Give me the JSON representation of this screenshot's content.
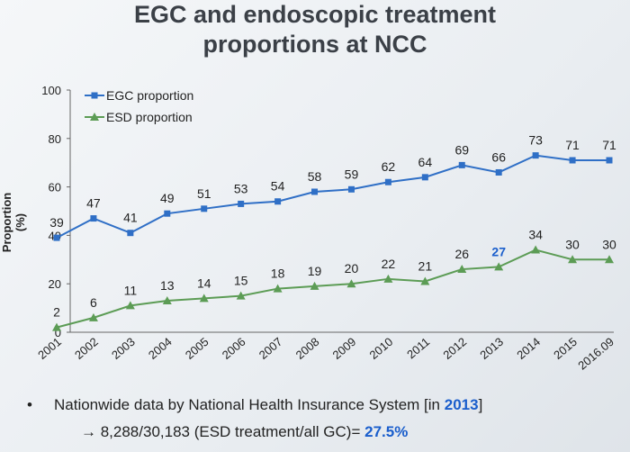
{
  "chart_data": {
    "type": "line",
    "title_line1": "EGC and endoscopic treatment",
    "title_line2": "proportions at NCC",
    "ylabel": "Proportion (%)",
    "xlabel": "",
    "ylim": [
      0,
      100
    ],
    "yticks": [
      0,
      20,
      40,
      60,
      80,
      100
    ],
    "categories": [
      "2001",
      "2002",
      "2003",
      "2004",
      "2005",
      "2006",
      "2007",
      "2008",
      "2009",
      "2010",
      "2011",
      "2012",
      "2013",
      "2014",
      "2015",
      "2016.09"
    ],
    "legend_position": "top-left",
    "grid": false,
    "series": [
      {
        "name": "EGC proportion",
        "color": "#2f6fc6",
        "marker": "square",
        "values": [
          39,
          47,
          41,
          49,
          51,
          53,
          54,
          58,
          59,
          62,
          64,
          69,
          66,
          73,
          71,
          71
        ]
      },
      {
        "name": "ESD proportion",
        "color": "#5c9c55",
        "marker": "triangle",
        "values": [
          2,
          6,
          11,
          13,
          14,
          15,
          18,
          19,
          20,
          22,
          21,
          26,
          27,
          34,
          30,
          30
        ],
        "highlight_index": 12,
        "highlight_color": "#1a5ecc"
      }
    ]
  },
  "note": {
    "bullet": "•",
    "line1_prefix": "Nationwide data by National Health Insurance System [in ",
    "line1_year": "2013",
    "line1_suffix": "]",
    "line2_prefix": "→ 8,288/30,183 (ESD treatment/all GC)= ",
    "line2_value": "27.5%"
  }
}
